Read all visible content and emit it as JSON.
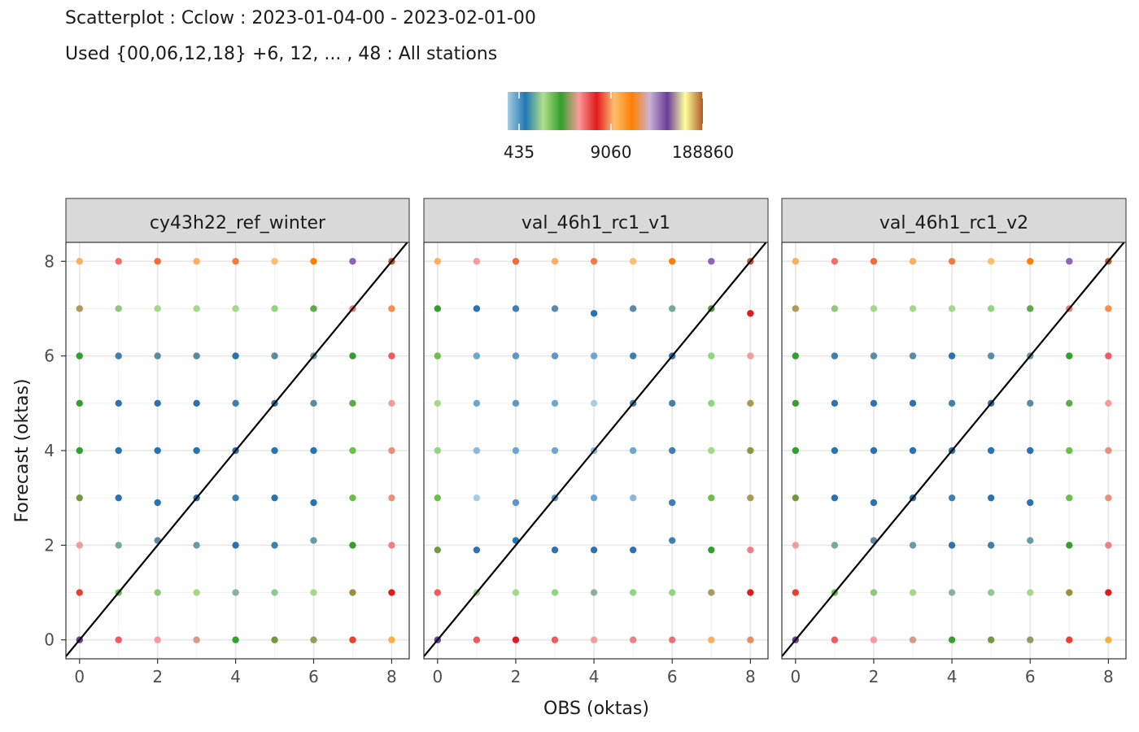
{
  "chart_data": {
    "type": "scatter",
    "title": "Scatterplot : Cclow : 2023-01-04-00 - 2023-02-01-00",
    "subtitle": "Used {00,06,12,18} +6, 12, ... , 48 : All stations",
    "xlabel": "OBS (oktas)",
    "ylabel": "Forecast (oktas)",
    "xlim": [
      -0.35,
      8.45
    ],
    "ylim": [
      -0.4,
      8.4
    ],
    "x_ticks": [
      0,
      2,
      4,
      6,
      8
    ],
    "y_ticks": [
      0,
      2,
      4,
      6,
      8
    ],
    "grid": true,
    "reference_line": "y = x",
    "legend": {
      "position": "top",
      "type": "colorbar",
      "labels": [
        "435",
        "9060",
        "188860"
      ],
      "colors": [
        "#a6cee3",
        "#1f78b4",
        "#b2df8a",
        "#33a02c",
        "#fb9a99",
        "#e31a1c",
        "#fdbf6f",
        "#ff7f00",
        "#cab2d6",
        "#6a3d9a",
        "#ffff99",
        "#b15928"
      ]
    },
    "panels": [
      {
        "name": "cy43h22_ref_winter",
        "points": [
          [
            0,
            8,
            "#fdae61"
          ],
          [
            1,
            8,
            "#f46d6d"
          ],
          [
            2,
            8,
            "#f26a3a"
          ],
          [
            3,
            8,
            "#fdae61"
          ],
          [
            4,
            8,
            "#f47a44"
          ],
          [
            5,
            8,
            "#fdbf6f"
          ],
          [
            6,
            8,
            "#ff7f00"
          ],
          [
            7,
            8,
            "#8e63b8"
          ],
          [
            8,
            8,
            "#c15a28"
          ],
          [
            0,
            7,
            "#b09a5a"
          ],
          [
            1,
            7,
            "#90c87a"
          ],
          [
            2,
            7,
            "#a6d88a"
          ],
          [
            3,
            7,
            "#a6d88a"
          ],
          [
            4,
            7,
            "#a6d88a"
          ],
          [
            5,
            7,
            "#90d67a"
          ],
          [
            6,
            7,
            "#5cab48"
          ],
          [
            7,
            7,
            "#f08070"
          ],
          [
            8,
            7,
            "#fb8c4a"
          ],
          [
            0,
            6,
            "#33a02c"
          ],
          [
            1,
            6,
            "#3f7fb0"
          ],
          [
            2,
            6,
            "#5a8aa8"
          ],
          [
            3,
            6,
            "#5a8aa8"
          ],
          [
            4,
            6,
            "#2a72b0"
          ],
          [
            5,
            6,
            "#5a8aa8"
          ],
          [
            6,
            6,
            "#6a9aa8"
          ],
          [
            7,
            6,
            "#33a02c"
          ],
          [
            8,
            6,
            "#f05a5a"
          ],
          [
            0,
            5,
            "#33a02c"
          ],
          [
            1,
            5,
            "#2a72b0"
          ],
          [
            2,
            5,
            "#2a72b0"
          ],
          [
            3,
            5,
            "#2a72b0"
          ],
          [
            4,
            5,
            "#3f7fb0"
          ],
          [
            5,
            5,
            "#2a72b0"
          ],
          [
            6,
            5,
            "#5a8aa8"
          ],
          [
            7,
            5,
            "#5cab48"
          ],
          [
            8,
            5,
            "#f89a9a"
          ],
          [
            0,
            4,
            "#33a02c"
          ],
          [
            1,
            4,
            "#2a72b0"
          ],
          [
            2,
            4,
            "#2a72b0"
          ],
          [
            3,
            4,
            "#2a72b0"
          ],
          [
            4,
            4,
            "#2a72b0"
          ],
          [
            5,
            4,
            "#2a72b0"
          ],
          [
            6,
            4,
            "#2a72b0"
          ],
          [
            7,
            4,
            "#6ac04a"
          ],
          [
            8,
            4,
            "#e8907a"
          ],
          [
            0,
            3,
            "#6f9a40"
          ],
          [
            1,
            3,
            "#2a72b0"
          ],
          [
            2,
            2.9,
            "#2a72b0"
          ],
          [
            3,
            3,
            "#2a72b0"
          ],
          [
            4,
            3,
            "#3f7fb0"
          ],
          [
            5,
            3,
            "#2a72b0"
          ],
          [
            6,
            2.9,
            "#2a72b0"
          ],
          [
            7,
            3,
            "#6ac04a"
          ],
          [
            8,
            3,
            "#e8907a"
          ],
          [
            0,
            2,
            "#f89a9a"
          ],
          [
            1,
            2,
            "#7aa8a0"
          ],
          [
            2,
            2.1,
            "#5a8aa8"
          ],
          [
            3,
            2,
            "#6a9aa8"
          ],
          [
            4,
            2,
            "#2a72b0"
          ],
          [
            5,
            2,
            "#3f7fb0"
          ],
          [
            6,
            2.1,
            "#6a9aa8"
          ],
          [
            7,
            2,
            "#33a02c"
          ],
          [
            8,
            2,
            "#f08080"
          ],
          [
            0,
            1,
            "#e8402c"
          ],
          [
            1,
            1,
            "#6ac04a"
          ],
          [
            2,
            1,
            "#90c87a"
          ],
          [
            3,
            1,
            "#a6d88a"
          ],
          [
            4,
            1,
            "#8ab0a0"
          ],
          [
            5,
            1,
            "#90c890"
          ],
          [
            6,
            1,
            "#a6d88a"
          ],
          [
            7,
            1,
            "#9a9040"
          ],
          [
            8,
            1,
            "#e31a1c"
          ],
          [
            0,
            0,
            "#6a3d9a"
          ],
          [
            1,
            0,
            "#f05a5a"
          ],
          [
            2,
            0,
            "#f89a9a"
          ],
          [
            3,
            0,
            "#d89a80"
          ],
          [
            4,
            0,
            "#33a02c"
          ],
          [
            5,
            0,
            "#6f9a40"
          ],
          [
            6,
            0,
            "#9a9a60"
          ],
          [
            7,
            0,
            "#e8402c"
          ],
          [
            8,
            0,
            "#fdae40"
          ]
        ]
      },
      {
        "name": "val_46h1_rc1_v1",
        "points": [
          [
            0,
            8,
            "#fdae61"
          ],
          [
            1,
            8,
            "#f89a9a"
          ],
          [
            2,
            8,
            "#f26a3a"
          ],
          [
            3,
            8,
            "#fdae61"
          ],
          [
            4,
            8,
            "#f47a44"
          ],
          [
            5,
            8,
            "#fdbf6f"
          ],
          [
            6,
            8,
            "#ff7f00"
          ],
          [
            7,
            8,
            "#8e63b8"
          ],
          [
            8,
            8,
            "#c15a28"
          ],
          [
            0,
            7,
            "#33a02c"
          ],
          [
            1,
            7,
            "#2a72b0"
          ],
          [
            2,
            7,
            "#3f7fb0"
          ],
          [
            3,
            7,
            "#5a8aa8"
          ],
          [
            4,
            6.9,
            "#2a72b0"
          ],
          [
            5,
            7,
            "#5a8aa8"
          ],
          [
            6,
            7,
            "#7aa890"
          ],
          [
            7,
            7,
            "#5a9a30"
          ],
          [
            8,
            6.9,
            "#e31a1c"
          ],
          [
            0,
            6,
            "#6ac04a"
          ],
          [
            1,
            6,
            "#6aa8d0"
          ],
          [
            2,
            6,
            "#5a98c8"
          ],
          [
            3,
            6,
            "#5a98c8"
          ],
          [
            4,
            6,
            "#6aa8d0"
          ],
          [
            5,
            6,
            "#3f7fb0"
          ],
          [
            6,
            6,
            "#2a72b0"
          ],
          [
            7,
            6,
            "#90d67a"
          ],
          [
            8,
            6,
            "#f89a9a"
          ],
          [
            0,
            5,
            "#a6d88a"
          ],
          [
            1,
            5,
            "#6aa8d0"
          ],
          [
            2,
            5,
            "#5a98c8"
          ],
          [
            3,
            5,
            "#6aa8d0"
          ],
          [
            4,
            5,
            "#a6cee3"
          ],
          [
            5,
            5,
            "#3f7fb0"
          ],
          [
            6,
            5,
            "#3f7fb0"
          ],
          [
            7,
            5,
            "#90d67a"
          ],
          [
            8,
            5,
            "#a89a50"
          ],
          [
            0,
            4,
            "#90d67a"
          ],
          [
            1,
            4,
            "#8ab8d8"
          ],
          [
            2,
            4,
            "#6aa8d0"
          ],
          [
            3,
            4,
            "#6aa8d0"
          ],
          [
            4,
            4,
            "#8ab8d8"
          ],
          [
            5,
            4,
            "#6aa8d0"
          ],
          [
            6,
            4,
            "#3f7fb0"
          ],
          [
            7,
            4,
            "#a6d88a"
          ],
          [
            8,
            4,
            "#8a9a40"
          ],
          [
            0,
            3,
            "#6ac04a"
          ],
          [
            1,
            3,
            "#a6cee3"
          ],
          [
            2,
            2.9,
            "#5a98c8"
          ],
          [
            3,
            3,
            "#5a98c8"
          ],
          [
            4,
            3,
            "#6aa8d0"
          ],
          [
            5,
            3,
            "#8ab8d8"
          ],
          [
            6,
            2.9,
            "#3f7fb0"
          ],
          [
            7,
            3,
            "#6ac04a"
          ],
          [
            8,
            3,
            "#a89a50"
          ],
          [
            0,
            1.9,
            "#6f9a40"
          ],
          [
            1,
            1.9,
            "#2a72b0"
          ],
          [
            2,
            2.1,
            "#1f78b4"
          ],
          [
            3,
            1.9,
            "#2a72b0"
          ],
          [
            4,
            1.9,
            "#2a72b0"
          ],
          [
            5,
            1.9,
            "#2a72b0"
          ],
          [
            6,
            2.1,
            "#3f7fb0"
          ],
          [
            7,
            1.9,
            "#33a02c"
          ],
          [
            8,
            1.9,
            "#f08080"
          ],
          [
            0,
            1,
            "#f05a5a"
          ],
          [
            1,
            1,
            "#a6d88a"
          ],
          [
            2,
            1,
            "#a6d88a"
          ],
          [
            3,
            1,
            "#90d67a"
          ],
          [
            4,
            1,
            "#8ab0a0"
          ],
          [
            5,
            1,
            "#90d67a"
          ],
          [
            6,
            1,
            "#90d67a"
          ],
          [
            7,
            1,
            "#a89a60"
          ],
          [
            8,
            1,
            "#e31a1c"
          ],
          [
            0,
            0,
            "#6a3d9a"
          ],
          [
            1,
            0,
            "#f05a5a"
          ],
          [
            2,
            0,
            "#e31a1c"
          ],
          [
            3,
            0,
            "#f05a5a"
          ],
          [
            4,
            0,
            "#f89a9a"
          ],
          [
            5,
            0,
            "#f08080"
          ],
          [
            6,
            0,
            "#f07070"
          ],
          [
            7,
            0,
            "#fdae61"
          ],
          [
            8,
            0,
            "#f08a60"
          ]
        ]
      },
      {
        "name": "val_46h1_rc1_v2",
        "points": [
          [
            0,
            8,
            "#fdae61"
          ],
          [
            1,
            8,
            "#f46d6d"
          ],
          [
            2,
            8,
            "#f26a3a"
          ],
          [
            3,
            8,
            "#fdae61"
          ],
          [
            4,
            8,
            "#f47a44"
          ],
          [
            5,
            8,
            "#fdbf6f"
          ],
          [
            6,
            8,
            "#ff7f00"
          ],
          [
            7,
            8,
            "#8e63b8"
          ],
          [
            8,
            8,
            "#c15a28"
          ],
          [
            0,
            7,
            "#b09a5a"
          ],
          [
            1,
            7,
            "#90c87a"
          ],
          [
            2,
            7,
            "#a6d88a"
          ],
          [
            3,
            7,
            "#a6d88a"
          ],
          [
            4,
            7,
            "#a6d88a"
          ],
          [
            5,
            7,
            "#90d67a"
          ],
          [
            6,
            7,
            "#5cab48"
          ],
          [
            7,
            7,
            "#f08070"
          ],
          [
            8,
            7,
            "#fb8c4a"
          ],
          [
            0,
            6,
            "#33a02c"
          ],
          [
            1,
            6,
            "#3f7fb0"
          ],
          [
            2,
            6,
            "#5a8aa8"
          ],
          [
            3,
            6,
            "#5a8aa8"
          ],
          [
            4,
            6,
            "#2a72b0"
          ],
          [
            5,
            6,
            "#5a8aa8"
          ],
          [
            6,
            6,
            "#6a9aa8"
          ],
          [
            7,
            6,
            "#33a02c"
          ],
          [
            8,
            6,
            "#f05a5a"
          ],
          [
            0,
            5,
            "#33a02c"
          ],
          [
            1,
            5,
            "#2a72b0"
          ],
          [
            2,
            5,
            "#2a72b0"
          ],
          [
            3,
            5,
            "#2a72b0"
          ],
          [
            4,
            5,
            "#3f7fb0"
          ],
          [
            5,
            5,
            "#2a72b0"
          ],
          [
            6,
            5,
            "#5a8aa8"
          ],
          [
            7,
            5,
            "#5cab48"
          ],
          [
            8,
            5,
            "#f89a9a"
          ],
          [
            0,
            4,
            "#33a02c"
          ],
          [
            1,
            4,
            "#2a72b0"
          ],
          [
            2,
            4,
            "#2a72b0"
          ],
          [
            3,
            4,
            "#2a72b0"
          ],
          [
            4,
            4,
            "#2a72b0"
          ],
          [
            5,
            4,
            "#2a72b0"
          ],
          [
            6,
            4,
            "#2a72b0"
          ],
          [
            7,
            4,
            "#6ac04a"
          ],
          [
            8,
            4,
            "#e8907a"
          ],
          [
            0,
            3,
            "#6f9a40"
          ],
          [
            1,
            3,
            "#2a72b0"
          ],
          [
            2,
            2.9,
            "#2a72b0"
          ],
          [
            3,
            3,
            "#2a72b0"
          ],
          [
            4,
            3,
            "#3f7fb0"
          ],
          [
            5,
            3,
            "#2a72b0"
          ],
          [
            6,
            2.9,
            "#2a72b0"
          ],
          [
            7,
            3,
            "#6ac04a"
          ],
          [
            8,
            3,
            "#e8907a"
          ],
          [
            0,
            2,
            "#f89a9a"
          ],
          [
            1,
            2,
            "#7aa8a0"
          ],
          [
            2,
            2.1,
            "#5a8aa8"
          ],
          [
            3,
            2,
            "#6a9aa8"
          ],
          [
            4,
            2,
            "#2a72b0"
          ],
          [
            5,
            2,
            "#3f7fb0"
          ],
          [
            6,
            2.1,
            "#6a9aa8"
          ],
          [
            7,
            2,
            "#33a02c"
          ],
          [
            8,
            2,
            "#f08080"
          ],
          [
            0,
            1,
            "#e8402c"
          ],
          [
            1,
            1,
            "#6ac04a"
          ],
          [
            2,
            1,
            "#90c87a"
          ],
          [
            3,
            1,
            "#a6d88a"
          ],
          [
            4,
            1,
            "#8ab0a0"
          ],
          [
            5,
            1,
            "#90c890"
          ],
          [
            6,
            1,
            "#a6d88a"
          ],
          [
            7,
            1,
            "#9a9040"
          ],
          [
            8,
            1,
            "#e31a1c"
          ],
          [
            0,
            0,
            "#6a3d9a"
          ],
          [
            1,
            0,
            "#f05a5a"
          ],
          [
            2,
            0,
            "#f89a9a"
          ],
          [
            3,
            0,
            "#d89a80"
          ],
          [
            4,
            0,
            "#33a02c"
          ],
          [
            5,
            0,
            "#6f9a40"
          ],
          [
            6,
            0,
            "#9a9a60"
          ],
          [
            7,
            0,
            "#e8402c"
          ],
          [
            8,
            0,
            "#fdae40"
          ]
        ]
      }
    ]
  }
}
